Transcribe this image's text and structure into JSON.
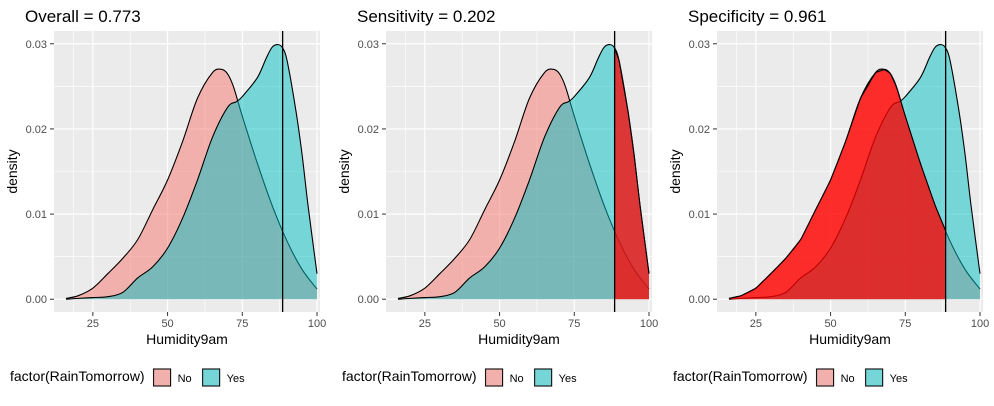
{
  "chart_data": [
    {
      "type": "area",
      "title": "Overall = 0.773",
      "xlabel": "Humidity9am",
      "ylabel": "density",
      "xlim": [
        12,
        101
      ],
      "ylim": [
        -0.0015,
        0.0315
      ],
      "xticks": [
        25,
        50,
        75,
        100
      ],
      "yticks": [
        0.0,
        0.01,
        0.02,
        0.03
      ],
      "ytick_labels": [
        "0.00",
        "0.01",
        "0.02",
        "0.03"
      ],
      "threshold": 88.5,
      "highlight": "none",
      "grid": true,
      "legend": {
        "title": "factor(RainTomorrow)",
        "position": "bottom",
        "entries": [
          "No",
          "Yes"
        ]
      },
      "series": [
        {
          "name": "No",
          "x": [
            16,
            20,
            25,
            30,
            35,
            40,
            45,
            50,
            55,
            60,
            65,
            68,
            70,
            72,
            75,
            80,
            85,
            90,
            95,
            100
          ],
          "y": [
            0.0001,
            0.0004,
            0.0013,
            0.003,
            0.0048,
            0.007,
            0.0105,
            0.014,
            0.0185,
            0.0236,
            0.0266,
            0.027,
            0.0265,
            0.025,
            0.0215,
            0.016,
            0.011,
            0.0068,
            0.0035,
            0.0012
          ]
        },
        {
          "name": "Yes",
          "x": [
            16,
            20,
            25,
            30,
            35,
            40,
            45,
            50,
            55,
            60,
            65,
            70,
            73,
            75,
            80,
            83,
            85,
            87,
            88.5,
            90,
            93,
            95,
            97,
            100
          ],
          "y": [
            0.0,
            0.0001,
            0.0002,
            0.0003,
            0.0008,
            0.0025,
            0.0038,
            0.006,
            0.0095,
            0.014,
            0.019,
            0.0225,
            0.0232,
            0.0238,
            0.026,
            0.0283,
            0.0296,
            0.0299,
            0.0295,
            0.028,
            0.022,
            0.017,
            0.011,
            0.003
          ]
        }
      ]
    },
    {
      "type": "area",
      "title": "Sensitivity = 0.202",
      "xlabel": "Humidity9am",
      "ylabel": "density",
      "xlim": [
        12,
        101
      ],
      "ylim": [
        -0.0015,
        0.0315
      ],
      "xticks": [
        25,
        50,
        75,
        100
      ],
      "yticks": [
        0.0,
        0.01,
        0.02,
        0.03
      ],
      "ytick_labels": [
        "0.00",
        "0.01",
        "0.02",
        "0.03"
      ],
      "threshold": 88.5,
      "highlight": "right",
      "grid": true,
      "legend": {
        "title": "factor(RainTomorrow)",
        "position": "bottom",
        "entries": [
          "No",
          "Yes"
        ]
      },
      "series": [
        {
          "name": "No",
          "x": [
            16,
            20,
            25,
            30,
            35,
            40,
            45,
            50,
            55,
            60,
            65,
            68,
            70,
            72,
            75,
            80,
            85,
            90,
            95,
            100
          ],
          "y": [
            0.0001,
            0.0004,
            0.0013,
            0.003,
            0.0048,
            0.007,
            0.0105,
            0.014,
            0.0185,
            0.0236,
            0.0266,
            0.027,
            0.0265,
            0.025,
            0.0215,
            0.016,
            0.011,
            0.0068,
            0.0035,
            0.0012
          ]
        },
        {
          "name": "Yes",
          "x": [
            16,
            20,
            25,
            30,
            35,
            40,
            45,
            50,
            55,
            60,
            65,
            70,
            73,
            75,
            80,
            83,
            85,
            87,
            88.5,
            90,
            93,
            95,
            97,
            100
          ],
          "y": [
            0.0,
            0.0001,
            0.0002,
            0.0003,
            0.0008,
            0.0025,
            0.0038,
            0.006,
            0.0095,
            0.014,
            0.019,
            0.0225,
            0.0232,
            0.0238,
            0.026,
            0.0283,
            0.0296,
            0.0299,
            0.0295,
            0.028,
            0.022,
            0.017,
            0.011,
            0.003
          ]
        }
      ]
    },
    {
      "type": "area",
      "title": "Specificity = 0.961",
      "xlabel": "Humidity9am",
      "ylabel": "density",
      "xlim": [
        12,
        101
      ],
      "ylim": [
        -0.0015,
        0.0315
      ],
      "xticks": [
        25,
        50,
        75,
        100
      ],
      "yticks": [
        0.0,
        0.01,
        0.02,
        0.03
      ],
      "ytick_labels": [
        "0.00",
        "0.01",
        "0.02",
        "0.03"
      ],
      "threshold": 88.5,
      "highlight": "left",
      "grid": true,
      "legend": {
        "title": "factor(RainTomorrow)",
        "position": "bottom",
        "entries": [
          "No",
          "Yes"
        ]
      },
      "series": [
        {
          "name": "No",
          "x": [
            16,
            20,
            25,
            30,
            35,
            40,
            45,
            50,
            55,
            60,
            65,
            68,
            70,
            72,
            75,
            80,
            85,
            90,
            95,
            100
          ],
          "y": [
            0.0001,
            0.0004,
            0.0013,
            0.003,
            0.0048,
            0.007,
            0.0105,
            0.014,
            0.0185,
            0.0236,
            0.0266,
            0.027,
            0.0265,
            0.025,
            0.0215,
            0.016,
            0.011,
            0.0068,
            0.0035,
            0.0012
          ]
        },
        {
          "name": "Yes",
          "x": [
            16,
            20,
            25,
            30,
            35,
            40,
            45,
            50,
            55,
            60,
            65,
            70,
            73,
            75,
            80,
            83,
            85,
            87,
            88.5,
            90,
            93,
            95,
            97,
            100
          ],
          "y": [
            0.0,
            0.0001,
            0.0002,
            0.0003,
            0.0008,
            0.0025,
            0.0038,
            0.006,
            0.0095,
            0.014,
            0.019,
            0.0225,
            0.0232,
            0.0238,
            0.026,
            0.0283,
            0.0296,
            0.0299,
            0.0295,
            0.028,
            0.022,
            0.017,
            0.011,
            0.003
          ]
        }
      ]
    }
  ],
  "colors": {
    "no_fill": "#F8766D",
    "yes_fill": "#00BFC4",
    "highlight_fill": "#FF0000",
    "panel_bg": "#EBEBEB",
    "grid": "#FFFFFF",
    "text": "#000000",
    "tick_text": "#4D4D4D"
  }
}
